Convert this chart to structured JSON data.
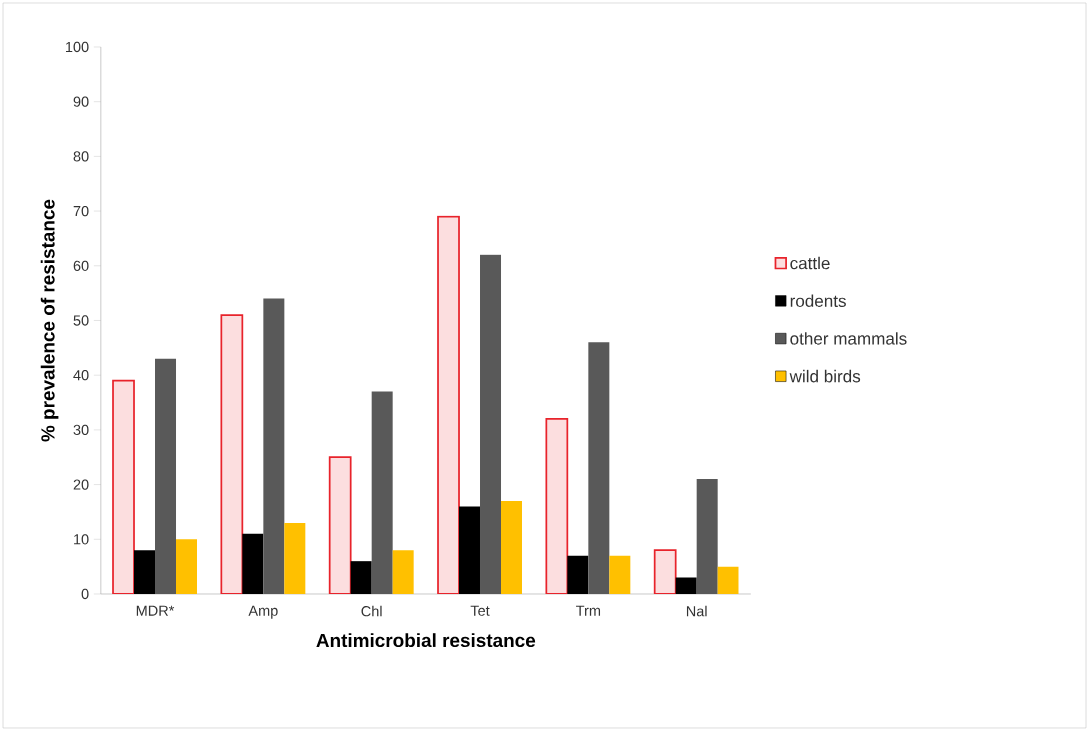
{
  "chart_data": {
    "type": "bar",
    "xlabel": "Antimicrobial resistance",
    "ylabel": "% prevalence of resistance",
    "categories": [
      "MDR*",
      "Amp",
      "Chl",
      "Tet",
      "Trm",
      "Nal"
    ],
    "series": [
      {
        "name": "cattle",
        "color": "#fcdedf",
        "values": [
          39,
          51,
          25,
          69,
          32,
          8
        ]
      },
      {
        "name": "rodents",
        "color": "#000000",
        "values": [
          8,
          11,
          6,
          16,
          7,
          3
        ]
      },
      {
        "name": "other mammals",
        "color": "#595959",
        "values": [
          43,
          54,
          37,
          62,
          46,
          21
        ]
      },
      {
        "name": "wild birds",
        "color": "#ffc000",
        "values": [
          10,
          13,
          8,
          17,
          7,
          5
        ]
      }
    ],
    "ylim": [
      0,
      100
    ],
    "yticks": [
      0,
      10,
      20,
      30,
      40,
      50,
      60,
      70,
      80,
      90,
      100
    ],
    "legend": "right",
    "grid": false
  }
}
